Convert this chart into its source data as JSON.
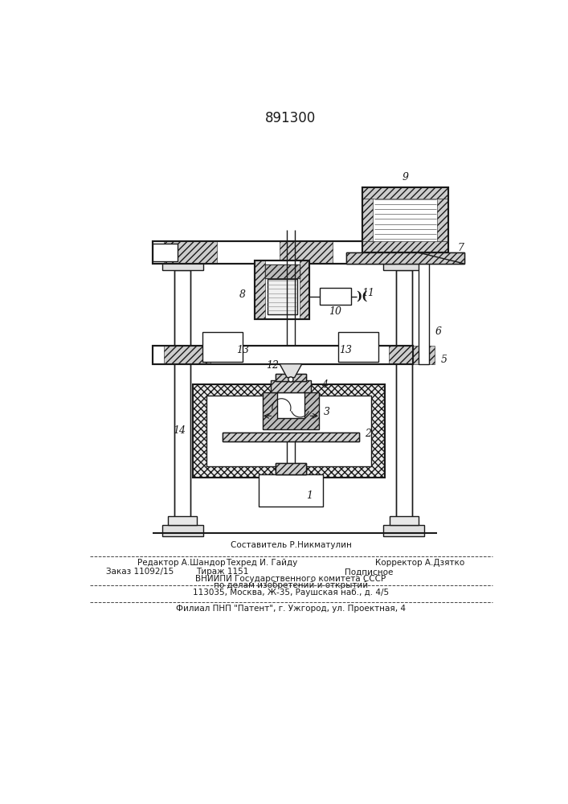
{
  "title": "891300",
  "bg_color": "#ffffff",
  "text_color": "#1a1a1a",
  "footer_sestavitel": "Составитель Р.Никматулин",
  "footer_redaktor": "Редактор А.Шандор",
  "footer_tehred": "Техред И. Гайду",
  "footer_korrektor": "Корректор А.Дзятко",
  "footer_zakaz": "Заказ 11092/15",
  "footer_tirazh": "Тираж 1151",
  "footer_podpisnoe": "Подписное",
  "footer_vniip1": "ВНИИПИ Государственного комитета СССР",
  "footer_vniip2": "по делам изобретений и открытий",
  "footer_vniip3": "113035, Москва, Ж-35, Раушская наб., д. 4/5",
  "footer_filial": "Филиал ПНП \"Патент\", г. Ужгород, ул. Проектная, 4"
}
